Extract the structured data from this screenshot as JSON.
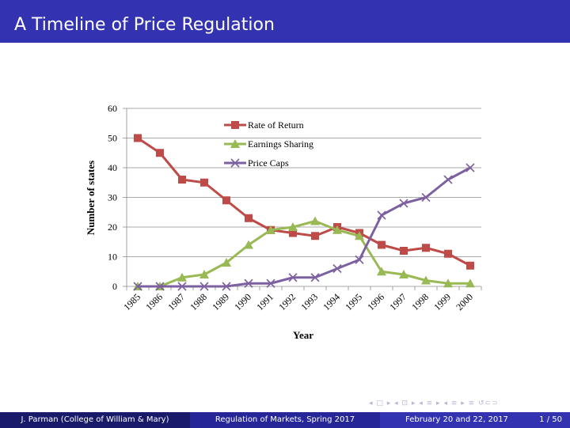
{
  "slide": {
    "title": "A Timeline of Price Regulation"
  },
  "footer": {
    "author": "J. Parman  (College of William & Mary)",
    "course": "Regulation of Markets, Spring 2017",
    "date": "February 20 and 22, 2017",
    "page": "1 / 50"
  },
  "nav": {
    "symbols": "◂ □ ▸ ◂ ⊡ ▸ ◂ ≡ ▸ ◂ ≡ ▸   ≡   ↺⊂⊃"
  },
  "chart_data": {
    "type": "line",
    "title": "",
    "xlabel": "Year",
    "ylabel": "Number of states",
    "ylim": [
      0,
      60
    ],
    "yticks": [
      "0",
      "10",
      "20",
      "30",
      "40",
      "50",
      "60"
    ],
    "grid": true,
    "legend_position": "top-center",
    "categories": [
      "1985",
      "1986",
      "1987",
      "1988",
      "1989",
      "1990",
      "1991",
      "1992",
      "1993",
      "1994",
      "1995",
      "1996",
      "1997",
      "1998",
      "1999",
      "2000"
    ],
    "series": [
      {
        "name": "Rate of Return",
        "color": "#be4b48",
        "marker": "square",
        "values": [
          50,
          45,
          36,
          35,
          29,
          23,
          19,
          18,
          17,
          20,
          18,
          14,
          12,
          13,
          11,
          7
        ]
      },
      {
        "name": "Earnings Sharing",
        "color": "#98b954",
        "marker": "triangle",
        "values": [
          0,
          0,
          3,
          4,
          8,
          14,
          19,
          20,
          22,
          19,
          17,
          5,
          4,
          2,
          1,
          1
        ]
      },
      {
        "name": "Price Caps",
        "color": "#7d60a0",
        "marker": "x",
        "values": [
          0,
          0,
          0,
          0,
          0,
          1,
          1,
          3,
          3,
          6,
          9,
          24,
          28,
          30,
          36,
          40
        ]
      }
    ]
  }
}
